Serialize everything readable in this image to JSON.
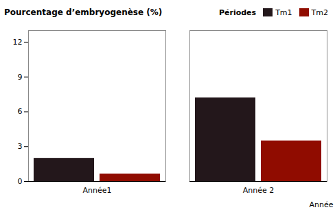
{
  "chart_data": {
    "type": "bar",
    "categories": [
      "Année1",
      "Année 2"
    ],
    "series": [
      {
        "name": "Tm1",
        "values": [
          2.0,
          7.2
        ]
      },
      {
        "name": "Tm2",
        "values": [
          0.65,
          3.5
        ]
      }
    ],
    "ylabel": "Pourcentage d’embryogenèse (%)",
    "xlabel": "Année",
    "legend_title": "Périodes",
    "legend": "upper right",
    "ylim": [
      0,
      13
    ],
    "yticks": [
      0,
      3,
      6,
      9,
      12
    ],
    "grid": false
  }
}
